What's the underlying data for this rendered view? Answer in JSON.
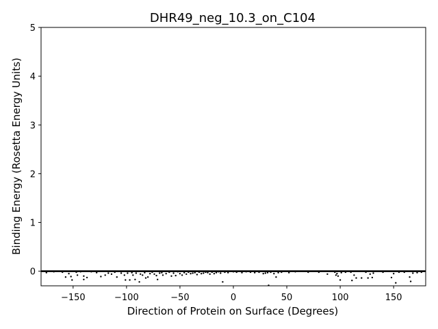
{
  "chart_data": {
    "type": "scatter",
    "title": "DHR49_neg_10.3_on_C104",
    "xlabel": "Direction of Protein on Surface (Degrees)",
    "ylabel": "Binding Energy (Rosetta Energy Units)",
    "xlim": [
      -180,
      180
    ],
    "ylim": [
      -0.3,
      5
    ],
    "xticks": [
      -150,
      -100,
      -50,
      0,
      50,
      100,
      150
    ],
    "yticks": [
      0,
      1,
      2,
      3,
      4,
      5
    ],
    "grid": false,
    "marker_color": "#000000",
    "baseline": {
      "y": 0,
      "x_from": -180,
      "x_to": 180
    },
    "series": [
      {
        "points": [
          [
            -175,
            -0.03
          ],
          [
            -168,
            -0.01
          ],
          [
            -160,
            -0.02
          ],
          [
            -157,
            -0.12
          ],
          [
            -154,
            -0.05
          ],
          [
            -152,
            -0.11
          ],
          [
            -151,
            -0.18
          ],
          [
            -147,
            -0.02
          ],
          [
            -146,
            -0.08
          ],
          [
            -143,
            -0.01
          ],
          [
            -140,
            -0.17
          ],
          [
            -140,
            -0.1
          ],
          [
            -137,
            -0.13
          ],
          [
            -133,
            -0.01
          ],
          [
            -128,
            -0.03
          ],
          [
            -124,
            -0.11
          ],
          [
            -120,
            -0.08
          ],
          [
            -117,
            -0.04
          ],
          [
            -114,
            -0.06
          ],
          [
            -111,
            -0.02
          ],
          [
            -109,
            -0.12
          ],
          [
            -105,
            -0.04
          ],
          [
            -102,
            -0.08
          ],
          [
            -101,
            -0.18
          ],
          [
            -99,
            -0.04
          ],
          [
            -97,
            -0.18
          ],
          [
            -95,
            -0.03
          ],
          [
            -94,
            -0.08
          ],
          [
            -92,
            -0.17
          ],
          [
            -91,
            -0.04
          ],
          [
            -88,
            -0.22
          ],
          [
            -87,
            -0.06
          ],
          [
            -85,
            -0.08
          ],
          [
            -83,
            -0.03
          ],
          [
            -82,
            -0.14
          ],
          [
            -80,
            -0.12
          ],
          [
            -78,
            -0.05
          ],
          [
            -76,
            -0.02
          ],
          [
            -74,
            -0.06
          ],
          [
            -72,
            -0.09
          ],
          [
            -71,
            -0.17
          ],
          [
            -69,
            -0.04
          ],
          [
            -67,
            -0.03
          ],
          [
            -66,
            -0.08
          ],
          [
            -63,
            -0.05
          ],
          [
            -60,
            -0.02
          ],
          [
            -58,
            -0.1
          ],
          [
            -56,
            -0.04
          ],
          [
            -54,
            -0.09
          ],
          [
            -52,
            -0.01
          ],
          [
            -50,
            -0.05
          ],
          [
            -48,
            -0.08
          ],
          [
            -46,
            -0.03
          ],
          [
            -44,
            -0.06
          ],
          [
            -42,
            -0.02
          ],
          [
            -40,
            -0.05
          ],
          [
            -38,
            -0.04
          ],
          [
            -36,
            -0.03
          ],
          [
            -34,
            -0.07
          ],
          [
            -32,
            -0.02
          ],
          [
            -30,
            -0.05
          ],
          [
            -28,
            -0.04
          ],
          [
            -26,
            -0.02
          ],
          [
            -24,
            -0.03
          ],
          [
            -22,
            -0.06
          ],
          [
            -20,
            -0.02
          ],
          [
            -18,
            -0.05
          ],
          [
            -16,
            -0.03
          ],
          [
            -14,
            -0.01
          ],
          [
            -12,
            -0.04
          ],
          [
            -10,
            -0.22
          ],
          [
            -8,
            -0.02
          ],
          [
            -5,
            -0.03
          ],
          [
            0,
            -0.01
          ],
          [
            3,
            -0.02
          ],
          [
            8,
            -0.03
          ],
          [
            12,
            -0.01
          ],
          [
            16,
            -0.02
          ],
          [
            20,
            -0.03
          ],
          [
            24,
            -0.02
          ],
          [
            28,
            -0.05
          ],
          [
            30,
            -0.04
          ],
          [
            32,
            -0.03
          ],
          [
            33,
            -0.29
          ],
          [
            35,
            -0.02
          ],
          [
            38,
            -0.05
          ],
          [
            40,
            -0.12
          ],
          [
            42,
            -0.03
          ],
          [
            45,
            -0.02
          ],
          [
            52,
            -0.03
          ],
          [
            58,
            -0.01
          ],
          [
            70,
            -0.02
          ],
          [
            80,
            -0.02
          ],
          [
            88,
            -0.06
          ],
          [
            95,
            -0.02
          ],
          [
            96,
            -0.08
          ],
          [
            97,
            -0.05
          ],
          [
            98,
            -0.1
          ],
          [
            100,
            -0.18
          ],
          [
            101,
            -0.03
          ],
          [
            105,
            -0.02
          ],
          [
            110,
            -0.02
          ],
          [
            111,
            -0.19
          ],
          [
            113,
            -0.08
          ],
          [
            115,
            -0.14
          ],
          [
            120,
            -0.14
          ],
          [
            124,
            -0.02
          ],
          [
            126,
            -0.14
          ],
          [
            128,
            -0.06
          ],
          [
            130,
            -0.13
          ],
          [
            131,
            -0.04
          ],
          [
            140,
            -0.02
          ],
          [
            148,
            -0.13
          ],
          [
            150,
            -0.05
          ],
          [
            152,
            -0.24
          ],
          [
            155,
            -0.02
          ],
          [
            160,
            -0.02
          ],
          [
            165,
            -0.12
          ],
          [
            166,
            -0.21
          ],
          [
            168,
            -0.04
          ],
          [
            172,
            -0.03
          ],
          [
            176,
            -0.02
          ]
        ]
      }
    ]
  }
}
